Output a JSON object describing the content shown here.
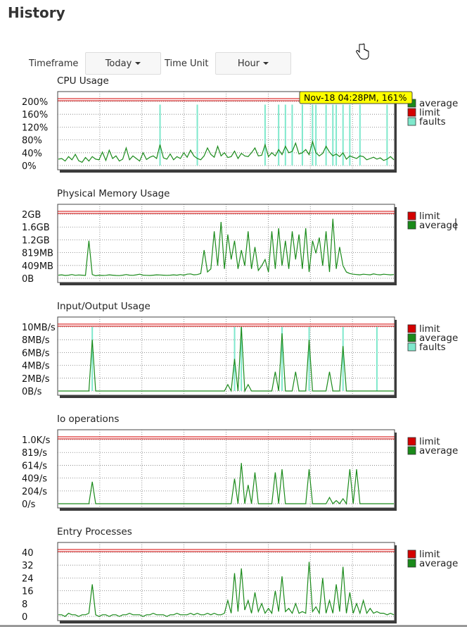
{
  "page": {
    "title": "History"
  },
  "controls": {
    "timeframe_label": "Timeframe",
    "timeframe_value": "Today",
    "time_unit_label": "Time Unit",
    "time_unit_value": "Hour"
  },
  "tooltip": {
    "text": "Nov-18 04:28PM, 161%"
  },
  "colors": {
    "average": "#1a8a1a",
    "limit": "#d40000",
    "faults": "#7fe8cc",
    "tooltip_bg": "#ffff00"
  },
  "chart_data": [
    {
      "type": "line",
      "title": "CPU Usage",
      "ylim": [
        0,
        200
      ],
      "ticks": [
        "200%",
        "160%",
        "120%",
        "80%",
        "40%",
        "0%"
      ],
      "tick_values": [
        200,
        160,
        120,
        80,
        40,
        0
      ],
      "legend": [
        "average",
        "limit",
        "faults"
      ],
      "limit": 200,
      "grid": true,
      "legend_position": "right",
      "series_average": [
        20,
        22,
        14,
        28,
        18,
        35,
        15,
        10,
        25,
        14,
        28,
        20,
        18,
        42,
        16,
        48,
        22,
        30,
        14,
        20,
        55,
        18,
        30,
        22,
        14,
        40,
        19,
        26,
        30,
        22,
        65,
        24,
        20,
        36,
        18,
        28,
        22,
        40,
        26,
        48,
        30,
        22,
        18,
        30,
        55,
        35,
        26,
        60,
        30,
        40,
        25,
        28,
        45,
        22,
        38,
        30,
        28,
        40,
        55,
        30,
        32,
        65,
        28,
        40,
        30,
        50,
        34,
        60,
        40,
        44,
        70,
        36,
        40,
        50,
        34,
        75,
        40,
        30,
        38,
        60,
        42,
        30,
        36,
        28,
        40,
        20,
        30,
        26,
        22,
        30,
        28,
        18,
        22,
        26,
        20,
        24,
        16,
        20,
        28,
        18
      ],
      "series_faults": [
        0,
        0,
        0,
        0,
        0,
        0,
        0,
        0,
        0,
        0,
        0,
        0,
        0,
        0,
        0,
        0,
        0,
        0,
        0,
        0,
        0,
        0,
        0,
        0,
        0,
        0,
        0,
        0,
        0,
        0,
        190,
        0,
        0,
        0,
        0,
        0,
        0,
        0,
        0,
        0,
        0,
        190,
        0,
        0,
        0,
        0,
        0,
        0,
        0,
        0,
        0,
        0,
        0,
        0,
        0,
        0,
        0,
        0,
        0,
        0,
        0,
        190,
        0,
        0,
        0,
        190,
        0,
        190,
        0,
        190,
        0,
        0,
        190,
        0,
        0,
        190,
        190,
        0,
        0,
        190,
        0,
        190,
        190,
        0,
        190,
        0,
        190,
        0,
        0,
        190,
        0,
        0,
        0,
        0,
        0,
        0,
        0,
        190,
        0,
        0
      ]
    },
    {
      "type": "line",
      "title": "Physical Memory Usage",
      "ylim": [
        0,
        2048
      ],
      "ticks": [
        "2GB",
        "1.6GB",
        "1.2GB",
        "819MB",
        "409MB",
        "0B"
      ],
      "tick_values": [
        2048,
        1638,
        1229,
        819,
        409,
        0
      ],
      "legend": [
        "limit",
        "average"
      ],
      "limit": 2048,
      "grid": true,
      "legend_position": "right",
      "series_average": [
        100,
        110,
        90,
        100,
        120,
        95,
        105,
        100,
        90,
        1200,
        120,
        80,
        100,
        90,
        95,
        110,
        100,
        90,
        85,
        100,
        120,
        100,
        95,
        110,
        130,
        100,
        95,
        90,
        100,
        110,
        105,
        100,
        95,
        100,
        110,
        100,
        120,
        100,
        130,
        140,
        110,
        120,
        150,
        900,
        200,
        300,
        1500,
        400,
        1800,
        300,
        1400,
        600,
        1200,
        300,
        900,
        400,
        1500,
        300,
        1000,
        250,
        400,
        600,
        200,
        1500,
        300,
        1600,
        400,
        1200,
        300,
        1500,
        600,
        1400,
        300,
        1600,
        200,
        1200,
        800,
        1300,
        400,
        1500,
        200,
        1900,
        300,
        1000,
        400,
        200,
        150,
        130,
        120,
        110,
        130,
        120,
        110,
        140,
        120,
        110,
        130,
        120,
        110,
        120
      ]
    },
    {
      "type": "line",
      "title": "Input/Output Usage",
      "ylim": [
        0,
        10
      ],
      "ticks": [
        "10MB/s",
        "8MB/s",
        "6MB/s",
        "4MB/s",
        "2MB/s",
        "0B/s"
      ],
      "tick_values": [
        10,
        8,
        6,
        4,
        2,
        0
      ],
      "legend": [
        "limit",
        "average",
        "faults"
      ],
      "limit": 10,
      "grid": true,
      "legend_position": "right",
      "series_average": [
        0,
        0,
        0,
        0,
        0,
        0,
        0,
        0,
        0,
        0,
        8,
        0,
        0,
        0,
        0,
        0,
        0,
        0,
        0,
        0,
        0,
        0,
        0,
        0,
        0,
        0,
        0,
        0,
        0,
        0,
        0,
        0,
        0,
        0,
        0,
        0,
        0,
        0,
        0,
        0,
        0,
        0,
        0,
        0,
        0,
        0,
        0,
        0,
        0,
        0,
        1,
        0,
        5,
        0,
        10,
        0,
        1,
        0,
        0,
        0,
        0,
        0,
        0,
        0,
        3,
        0,
        9,
        0,
        0,
        0,
        3,
        0,
        0,
        0,
        8,
        0,
        0,
        0,
        0,
        0,
        3,
        0,
        0,
        0,
        7,
        0,
        0,
        0,
        0,
        0,
        0,
        0,
        0,
        0,
        0,
        0,
        0,
        0,
        0,
        0
      ],
      "series_faults": [
        0,
        0,
        0,
        0,
        0,
        0,
        0,
        0,
        0,
        0,
        10,
        0,
        0,
        0,
        0,
        0,
        0,
        0,
        0,
        0,
        0,
        0,
        0,
        0,
        0,
        0,
        0,
        0,
        0,
        0,
        0,
        0,
        0,
        0,
        0,
        0,
        0,
        0,
        0,
        0,
        0,
        0,
        0,
        0,
        0,
        0,
        0,
        0,
        0,
        0,
        0,
        0,
        10,
        0,
        10,
        0,
        0,
        0,
        0,
        0,
        0,
        0,
        0,
        0,
        0,
        0,
        10,
        0,
        0,
        0,
        0,
        0,
        0,
        0,
        10,
        0,
        0,
        0,
        0,
        0,
        0,
        0,
        0,
        0,
        10,
        0,
        0,
        0,
        0,
        0,
        0,
        0,
        0,
        0,
        10,
        0,
        0,
        0,
        0,
        0
      ]
    },
    {
      "type": "line",
      "title": "Io operations",
      "ylim": [
        0,
        1024
      ],
      "ticks": [
        "1.0K/s",
        "819/s",
        "614/s",
        "409/s",
        "204/s",
        "0/s"
      ],
      "tick_values": [
        1024,
        819,
        614,
        409,
        204,
        0
      ],
      "legend": [
        "limit",
        "average"
      ],
      "limit": 1024,
      "grid": true,
      "legend_position": "right",
      "series_average": [
        0,
        0,
        0,
        0,
        0,
        0,
        0,
        0,
        0,
        0,
        350,
        0,
        0,
        0,
        0,
        0,
        0,
        0,
        0,
        0,
        0,
        0,
        0,
        0,
        0,
        0,
        0,
        0,
        0,
        0,
        0,
        0,
        0,
        0,
        0,
        0,
        0,
        0,
        0,
        0,
        0,
        0,
        0,
        0,
        0,
        0,
        0,
        0,
        0,
        0,
        0,
        0,
        400,
        0,
        650,
        0,
        300,
        0,
        500,
        0,
        0,
        0,
        0,
        0,
        500,
        0,
        550,
        0,
        0,
        0,
        0,
        0,
        0,
        0,
        550,
        0,
        0,
        0,
        0,
        0,
        100,
        0,
        50,
        0,
        80,
        0,
        550,
        0,
        550,
        0,
        0,
        0,
        0,
        0,
        0,
        0,
        0,
        0,
        0,
        0
      ]
    },
    {
      "type": "line",
      "title": "Entry Processes",
      "ylim": [
        0,
        40
      ],
      "ticks": [
        "40",
        "32",
        "24",
        "16",
        "8",
        "0"
      ],
      "tick_values": [
        40,
        32,
        24,
        16,
        8,
        0
      ],
      "legend": [
        "limit",
        "average"
      ],
      "limit": 40,
      "grid": true,
      "legend_position": "right",
      "series_average": [
        1,
        1,
        0,
        2,
        1,
        1,
        0,
        1,
        1,
        2,
        20,
        1,
        0,
        1,
        1,
        0,
        1,
        1,
        0,
        1,
        1,
        2,
        1,
        1,
        1,
        0,
        1,
        1,
        2,
        1,
        1,
        1,
        0,
        1,
        1,
        2,
        1,
        1,
        1,
        2,
        1,
        2,
        1,
        1,
        2,
        1,
        2,
        1,
        1,
        2,
        10,
        2,
        27,
        3,
        30,
        4,
        10,
        2,
        15,
        3,
        8,
        2,
        5,
        2,
        16,
        3,
        25,
        3,
        5,
        2,
        8,
        2,
        3,
        2,
        34,
        3,
        6,
        2,
        24,
        2,
        10,
        2,
        20,
        3,
        31,
        2,
        15,
        2,
        8,
        2,
        10,
        2,
        5,
        2,
        3,
        2,
        2,
        1,
        2,
        1
      ]
    }
  ]
}
